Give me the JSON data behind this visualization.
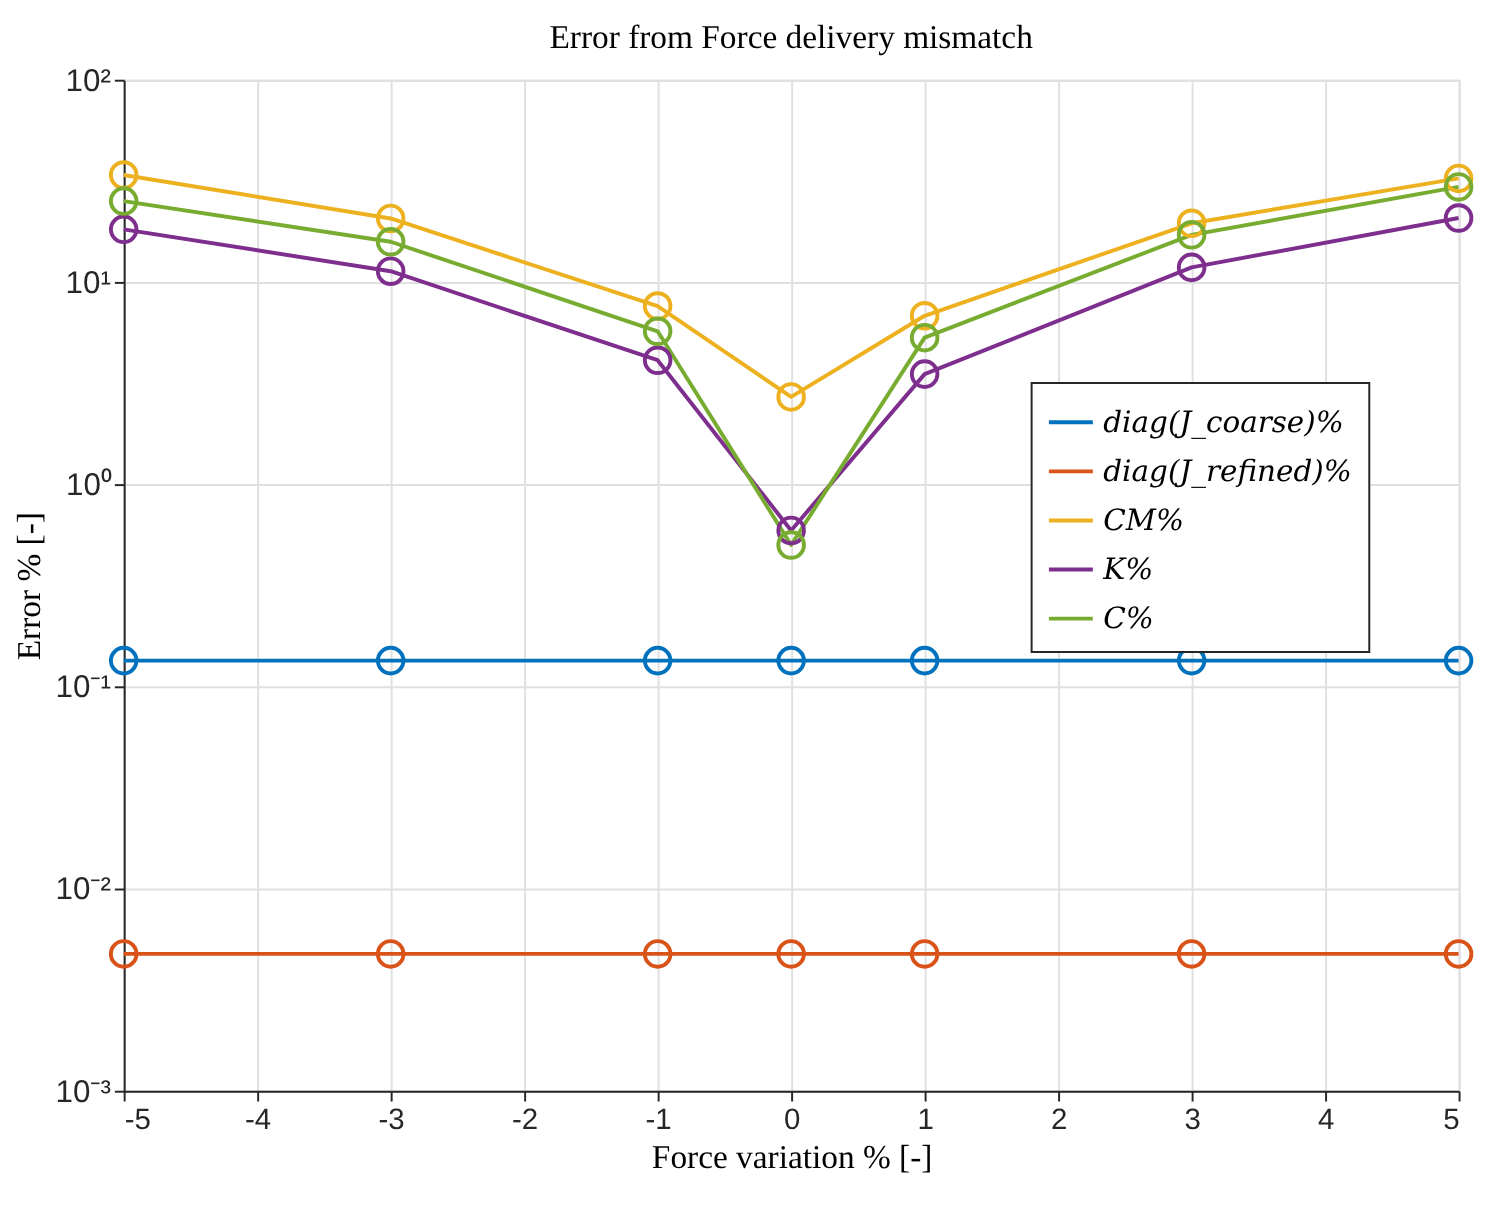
{
  "chart_data": {
    "type": "line",
    "title": "Error from Force delivery mismatch",
    "xlabel": "Force variation % [-]",
    "ylabel": "Error % [-]",
    "x": [
      -5,
      -3,
      -1,
      0,
      1,
      3,
      5
    ],
    "series": [
      {
        "name": "diag(J_coarse)%",
        "color": "#0072bd",
        "values": [
          0.134,
          0.134,
          0.134,
          0.134,
          0.134,
          0.134,
          0.134
        ]
      },
      {
        "name": "diag(J_refined)%",
        "color": "#d95319",
        "values": [
          0.00475,
          0.00475,
          0.00475,
          0.00475,
          0.00475,
          0.00475,
          0.00475
        ]
      },
      {
        "name": "CM%",
        "color": "#edb120",
        "values": [
          33.8,
          20.6,
          7.6,
          2.7,
          6.8,
          19.5,
          32.5
        ]
      },
      {
        "name": "K%",
        "color": "#7e2f8e",
        "values": [
          18.2,
          11.3,
          4.1,
          0.59,
          3.5,
          11.8,
          20.7
        ]
      },
      {
        "name": "C%",
        "color": "#77ac30",
        "values": [
          25.1,
          15.8,
          5.7,
          0.5,
          5.3,
          17.1,
          29.5
        ]
      }
    ],
    "xlim": [
      -5,
      5
    ],
    "xticks": [
      -5,
      -4,
      -3,
      -2,
      -1,
      0,
      1,
      2,
      3,
      4,
      5
    ],
    "ylim": [
      0.001,
      100
    ],
    "yticks": [
      {
        "value": 0.001,
        "label": "10⁻³"
      },
      {
        "value": 0.01,
        "label": "10⁻²"
      },
      {
        "value": 0.1,
        "label": "10⁻¹"
      },
      {
        "value": 1,
        "label": "10⁰"
      },
      {
        "value": 10,
        "label": "10¹"
      },
      {
        "value": 100,
        "label": "10²"
      }
    ],
    "log": true,
    "grid": true,
    "legend": "right",
    "marker": "circle",
    "line_style": "solid"
  }
}
